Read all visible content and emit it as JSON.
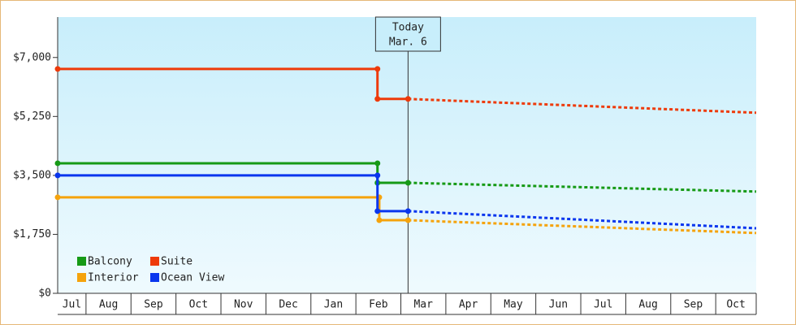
{
  "chart_data": {
    "type": "line",
    "ylim": [
      0,
      8200
    ],
    "yticks": [
      {
        "value": 0,
        "label": "$0"
      },
      {
        "value": 1750,
        "label": "$1,750"
      },
      {
        "value": 3500,
        "label": "$3,500"
      },
      {
        "value": 5250,
        "label": "$5,250"
      },
      {
        "value": 7000,
        "label": "$7,000"
      }
    ],
    "xlim": [
      0.37,
      15.9
    ],
    "xticks": [
      {
        "value": 0,
        "label": "Jul"
      },
      {
        "value": 1,
        "label": "Aug"
      },
      {
        "value": 2,
        "label": "Sep"
      },
      {
        "value": 3,
        "label": "Oct"
      },
      {
        "value": 4,
        "label": "Nov"
      },
      {
        "value": 5,
        "label": "Dec"
      },
      {
        "value": 6,
        "label": "Jan"
      },
      {
        "value": 7,
        "label": "Feb"
      },
      {
        "value": 8,
        "label": "Mar"
      },
      {
        "value": 9,
        "label": "Apr"
      },
      {
        "value": 10,
        "label": "May"
      },
      {
        "value": 11,
        "label": "Jun"
      },
      {
        "value": 12,
        "label": "Jul"
      },
      {
        "value": 13,
        "label": "Aug"
      },
      {
        "value": 14,
        "label": "Sep"
      },
      {
        "value": 15,
        "label": "Oct"
      }
    ],
    "today": {
      "x": 8.16,
      "label": "Today",
      "date": "Mar. 6"
    },
    "legend": "lower left",
    "series": [
      {
        "name": "Balcony",
        "color": "#169a16",
        "x": [
          0.37,
          7.48,
          7.48,
          8.16,
          15.9
        ],
        "values": [
          3860,
          3860,
          3280,
          3280,
          3020
        ]
      },
      {
        "name": "Suite",
        "color": "#ee3a0a",
        "x": [
          0.37,
          7.48,
          7.48,
          8.16,
          15.9
        ],
        "values": [
          6660,
          6660,
          5770,
          5770,
          5360
        ]
      },
      {
        "name": "Interior",
        "color": "#f5a30c",
        "x": [
          0.37,
          7.52,
          7.52,
          8.16,
          15.9
        ],
        "values": [
          2850,
          2850,
          2170,
          2170,
          1790
        ]
      },
      {
        "name": "Ocean View",
        "color": "#0a36ee",
        "x": [
          0.37,
          7.48,
          7.48,
          8.16,
          15.9
        ],
        "values": [
          3500,
          3500,
          2440,
          2440,
          1930
        ]
      }
    ]
  }
}
